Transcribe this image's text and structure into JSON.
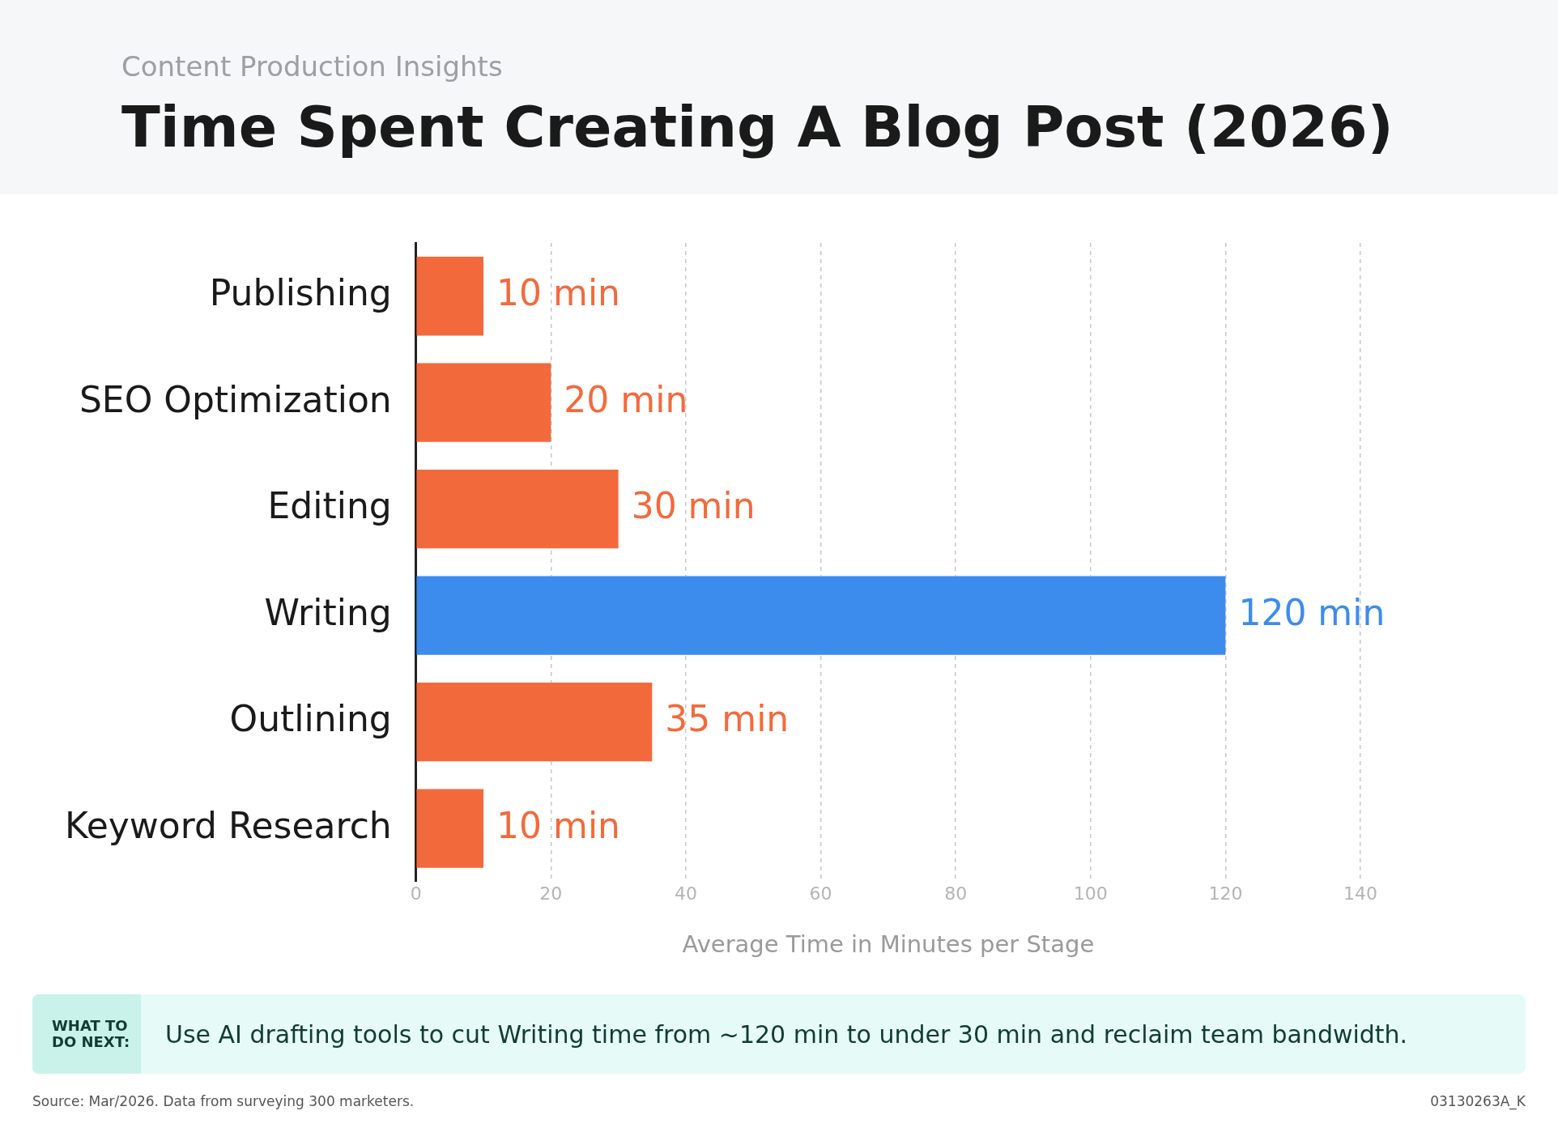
{
  "chart_data": {
    "type": "bar",
    "orientation": "horizontal",
    "subtitle": "Content Production Insights",
    "title": "Time Spent Creating A Blog Post (2026)",
    "categories": [
      "Publishing",
      "SEO Optimization",
      "Editing",
      "Writing",
      "Outlining",
      "Keyword Research"
    ],
    "values": [
      10,
      20,
      30,
      120,
      35,
      10
    ],
    "colors": [
      "#f26a3c",
      "#f26a3c",
      "#f26a3c",
      "#3b8ced",
      "#f26a3c",
      "#f26a3c"
    ],
    "value_labels": [
      "10 min",
      "20 min",
      "30 min",
      "120 min",
      "35 min",
      "10 min"
    ],
    "xlabel": "Average Time in Minutes per Stage",
    "xlim": [
      0,
      140
    ],
    "xticks": [
      0,
      20,
      40,
      60,
      80,
      100,
      120,
      140
    ],
    "grid": "x",
    "legend": false,
    "annotations": [
      "WHAT TO DO NEXT:",
      "Use AI drafting tools to cut Writing time from ~120 min to under 30 min and reclaim team bandwidth.",
      "Source: Mar/2026. Data from surveying 300 marketers.",
      "03130263A_K"
    ]
  }
}
